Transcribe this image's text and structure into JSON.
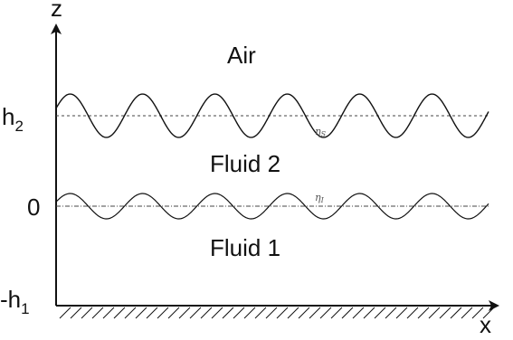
{
  "axes": {
    "z_label": "z",
    "x_label": "x"
  },
  "levels": {
    "h2_base": "h",
    "h2_sub": "2",
    "zero": "0",
    "neg_h1_base": "-h",
    "neg_h1_sub": "1"
  },
  "regions": {
    "air": "Air",
    "fluid2": "Fluid 2",
    "fluid1": "Fluid 1"
  },
  "interfaces": {
    "surface_eta_base": "η",
    "surface_eta_sub": "S",
    "internal_eta_base": "η",
    "internal_eta_sub": "I"
  },
  "colors": {
    "line": "#111111",
    "dashed": "#444444",
    "eta": "#555555"
  }
}
